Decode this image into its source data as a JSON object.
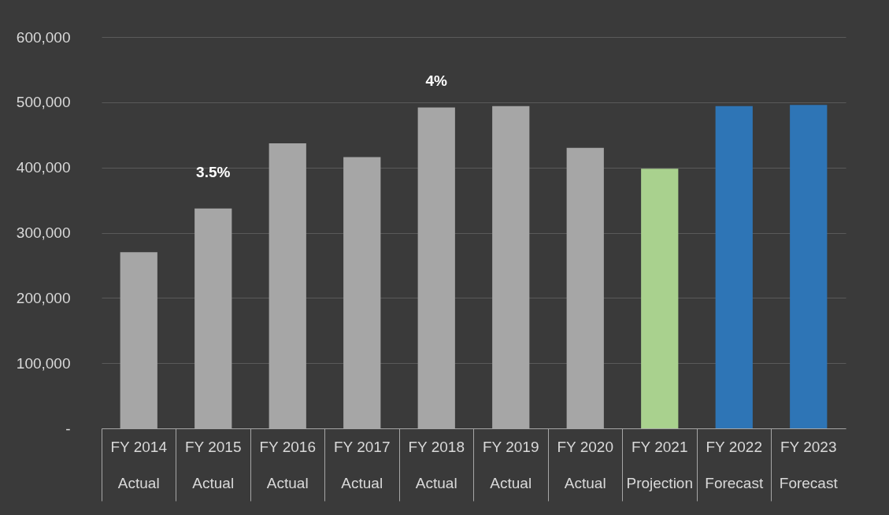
{
  "chart_data": {
    "type": "bar",
    "categories": [
      "FY 2014\nActual",
      "FY 2015\nActual",
      "FY 2016\nActual",
      "FY 2017\nActual",
      "FY 2018\nActual",
      "FY 2019\nActual",
      "FY 2020\nActual",
      "FY 2021\nProjection",
      "FY 2022\nForecast",
      "FY 2023\nForecast"
    ],
    "values": [
      270000,
      337000,
      437000,
      416000,
      492000,
      494000,
      430000,
      398000,
      494000,
      496000
    ],
    "colors": [
      "#a6a6a6",
      "#a6a6a6",
      "#a6a6a6",
      "#a6a6a6",
      "#a6a6a6",
      "#a6a6a6",
      "#a6a6a6",
      "#a9d18e",
      "#2e75b6",
      "#2e75b6"
    ],
    "ylim": [
      0,
      600000
    ],
    "yticks": [
      {
        "value": 0,
        "label": "-"
      },
      {
        "value": 100000,
        "label": "100,000"
      },
      {
        "value": 200000,
        "label": "200,000"
      },
      {
        "value": 300000,
        "label": "300,000"
      },
      {
        "value": 400000,
        "label": "400,000"
      },
      {
        "value": 500000,
        "label": "500,000"
      },
      {
        "value": 600000,
        "label": "600,000"
      }
    ],
    "grid": "y",
    "annotations": [
      "3.5%",
      "4%"
    ]
  }
}
